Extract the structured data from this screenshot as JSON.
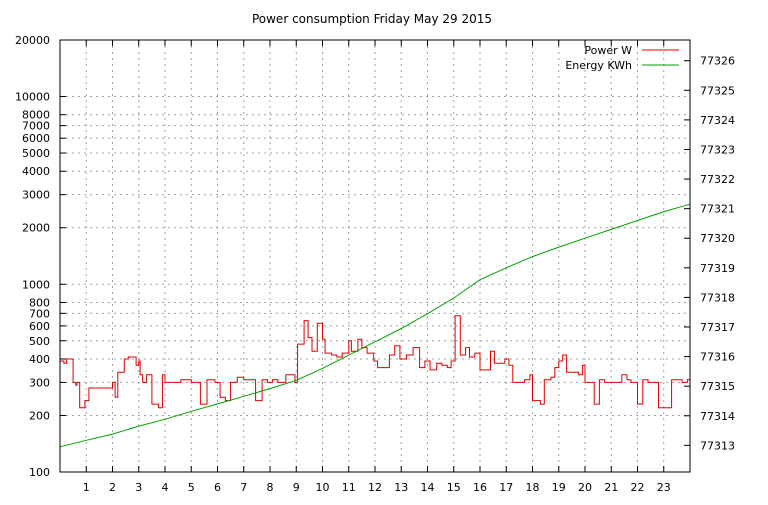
{
  "chart_data": {
    "type": "line",
    "title": "Power consumption Friday May 29 2015",
    "xlabel": "",
    "ylabel": "",
    "y2label": "",
    "grid": true,
    "legend_position": "top-right",
    "x_range": [
      0,
      24
    ],
    "x_ticks": [
      1,
      2,
      3,
      4,
      5,
      6,
      7,
      8,
      9,
      10,
      11,
      12,
      13,
      14,
      15,
      16,
      17,
      18,
      19,
      20,
      21,
      22,
      23
    ],
    "y_scale": "log",
    "y_range": [
      100,
      20000
    ],
    "y_ticks": [
      100,
      200,
      300,
      400,
      500,
      600,
      700,
      800,
      1000,
      2000,
      3000,
      4000,
      5000,
      6000,
      7000,
      8000,
      10000,
      20000
    ],
    "y2_range": [
      77312.1,
      77326.7
    ],
    "y2_ticks": [
      77313,
      77314,
      77315,
      77316,
      77317,
      77318,
      77319,
      77320,
      77321,
      77322,
      77323,
      77324,
      77325,
      77326
    ],
    "series": [
      {
        "name": "Power W",
        "color": "#dd0000",
        "axis": "left",
        "style": "steps",
        "x": [
          0.0,
          0.15,
          0.25,
          0.5,
          0.6,
          0.65,
          0.75,
          0.95,
          1.1,
          1.35,
          1.5,
          1.8,
          2.0,
          2.1,
          2.2,
          2.45,
          2.6,
          2.9,
          3.0,
          3.05,
          3.15,
          3.3,
          3.5,
          3.75,
          3.9,
          4.0,
          4.35,
          4.6,
          4.8,
          5.0,
          5.1,
          5.35,
          5.6,
          5.75,
          5.9,
          6.1,
          6.3,
          6.5,
          6.75,
          7.0,
          7.2,
          7.45,
          7.7,
          7.85,
          7.9,
          8.1,
          8.3,
          8.45,
          8.6,
          8.8,
          8.95,
          9.05,
          9.3,
          9.45,
          9.6,
          9.8,
          10.0,
          10.1,
          10.35,
          10.55,
          10.75,
          11.0,
          11.1,
          11.35,
          11.5,
          11.7,
          11.95,
          12.1,
          12.35,
          12.55,
          12.75,
          12.95,
          13.2,
          13.45,
          13.7,
          13.9,
          14.1,
          14.35,
          14.55,
          14.75,
          14.9,
          15.05,
          15.25,
          15.45,
          15.6,
          15.8,
          16.0,
          16.15,
          16.4,
          16.55,
          16.75,
          16.95,
          17.1,
          17.25,
          17.5,
          17.7,
          17.9,
          18.0,
          18.1,
          18.3,
          18.45,
          18.7,
          18.85,
          19.0,
          19.15,
          19.3,
          19.55,
          19.75,
          19.9,
          20.0,
          20.15,
          20.35,
          20.55,
          20.75,
          20.95,
          21.1,
          21.4,
          21.6,
          21.75,
          21.9,
          22.0,
          22.2,
          22.4,
          22.6,
          22.8,
          22.95,
          23.1,
          23.3,
          23.5,
          23.7,
          23.9
        ],
        "y": [
          390,
          380,
          400,
          300,
          290,
          300,
          220,
          240,
          280,
          280,
          280,
          280,
          300,
          250,
          340,
          400,
          410,
          370,
          390,
          330,
          300,
          330,
          230,
          220,
          330,
          300,
          300,
          310,
          310,
          300,
          300,
          230,
          310,
          310,
          300,
          250,
          240,
          300,
          320,
          310,
          310,
          240,
          310,
          310,
          300,
          310,
          300,
          300,
          330,
          330,
          300,
          480,
          640,
          520,
          440,
          620,
          510,
          430,
          420,
          410,
          430,
          500,
          440,
          510,
          460,
          430,
          390,
          360,
          360,
          420,
          470,
          400,
          420,
          460,
          360,
          390,
          350,
          380,
          370,
          360,
          390,
          680,
          420,
          460,
          410,
          430,
          350,
          350,
          440,
          380,
          380,
          400,
          370,
          300,
          300,
          310,
          330,
          240,
          240,
          230,
          310,
          320,
          360,
          390,
          420,
          340,
          340,
          330,
          370,
          300,
          300,
          230,
          310,
          300,
          300,
          300,
          330,
          310,
          300,
          300,
          230,
          310,
          300,
          300,
          220,
          220,
          220,
          310,
          310,
          300,
          310
        ]
      },
      {
        "name": "Energy KWh",
        "color": "#00a000",
        "axis": "right",
        "style": "line",
        "x": [
          0,
          1,
          2,
          3,
          4,
          5,
          6,
          7,
          8,
          9,
          10,
          11,
          12,
          13,
          14,
          15,
          16,
          17,
          18,
          19,
          20,
          21,
          22,
          23,
          24
        ],
        "y": [
          77312.95,
          77313.17,
          77313.38,
          77313.65,
          77313.88,
          77314.15,
          77314.4,
          77314.66,
          77314.92,
          77315.2,
          77315.6,
          77316.05,
          77316.5,
          77316.95,
          77317.45,
          77317.98,
          77318.6,
          77319.0,
          77319.38,
          77319.7,
          77320.0,
          77320.3,
          77320.6,
          77320.9,
          77321.15
        ]
      }
    ]
  }
}
